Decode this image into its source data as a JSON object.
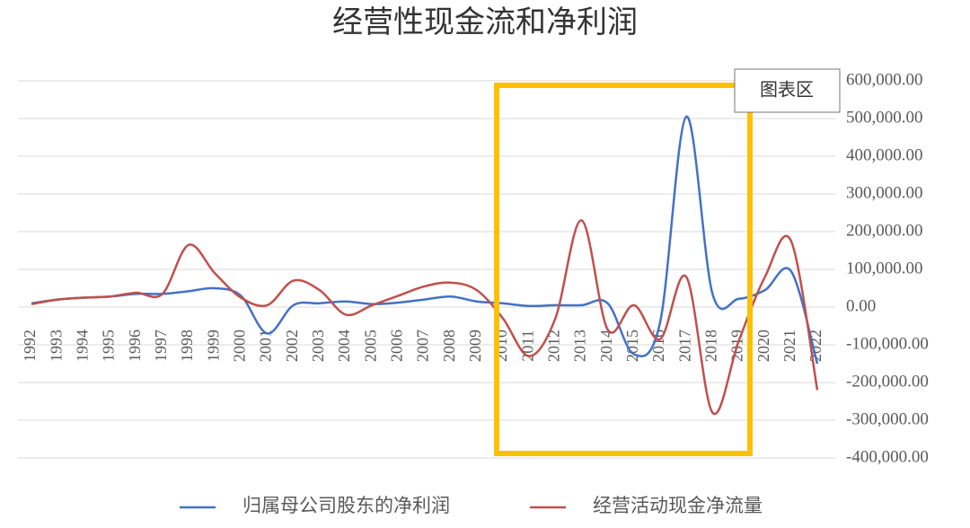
{
  "chart_data": {
    "type": "line",
    "title": "经营性现金流和净利润",
    "annotation": "图表区",
    "categories": [
      "1992",
      "1993",
      "1994",
      "1995",
      "1996",
      "1997",
      "1998",
      "1999",
      "2000",
      "2001",
      "2002",
      "2003",
      "2004",
      "2005",
      "2006",
      "2007",
      "2008",
      "2009",
      "2010",
      "2011",
      "2012",
      "2013",
      "2014",
      "2015",
      "2016",
      "2017",
      "2018",
      "2019",
      "2020",
      "2021",
      "2022"
    ],
    "series": [
      {
        "name": "归属母公司股东的净利润",
        "color": "#4472c4",
        "values": [
          10000,
          20000,
          25000,
          28000,
          35000,
          35000,
          42000,
          50000,
          30000,
          -70000,
          5000,
          10000,
          15000,
          8000,
          12000,
          20000,
          28000,
          15000,
          10000,
          3000,
          5000,
          5000,
          10000,
          -125000,
          -40000,
          505000,
          35000,
          22000,
          45000,
          95000,
          -150000
        ]
      },
      {
        "name": "经营活动现金净流量",
        "color": "#c0504d",
        "values": [
          8000,
          20000,
          25000,
          28000,
          38000,
          35000,
          165000,
          90000,
          25000,
          5000,
          70000,
          45000,
          -20000,
          5000,
          30000,
          55000,
          65000,
          45000,
          -30000,
          -130000,
          -30000,
          230000,
          -60000,
          5000,
          -85000,
          80000,
          -280000,
          -90000,
          80000,
          175000,
          -220000
        ]
      }
    ],
    "ylim": [
      -400000,
      600000
    ],
    "yticks": [
      {
        "value": -400000,
        "label": "-400,000.00"
      },
      {
        "value": -300000,
        "label": "-300,000.00"
      },
      {
        "value": -200000,
        "label": "-200,000.00"
      },
      {
        "value": -100000,
        "label": "-100,000.00"
      },
      {
        "value": 0,
        "label": "0.00"
      },
      {
        "value": 100000,
        "label": "100,000.00"
      },
      {
        "value": 200000,
        "label": "200,000.00"
      },
      {
        "value": 300000,
        "label": "300,000.00"
      },
      {
        "value": 400000,
        "label": "400,000.00"
      },
      {
        "value": 500000,
        "label": "500,000.00"
      },
      {
        "value": 600000,
        "label": "600,000.00"
      }
    ],
    "grid": true
  }
}
